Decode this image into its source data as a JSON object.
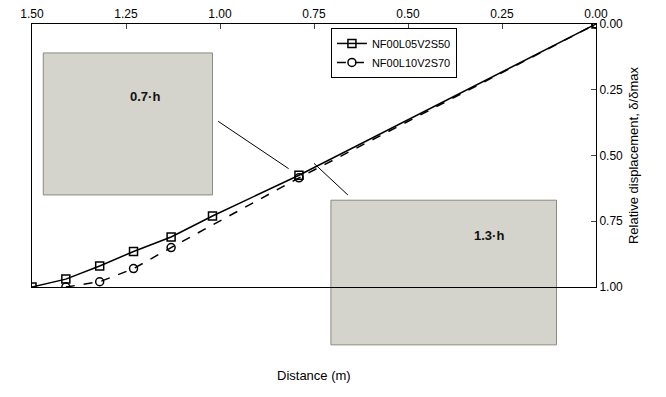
{
  "chart_data": {
    "type": "line",
    "x_label": "Distance (m)",
    "y_label": "Relative displacement, δ/δmax",
    "xlim": [
      1.5,
      0
    ],
    "xticks": [
      {
        "value": 1.5,
        "label": "1.50"
      },
      {
        "value": 1.25,
        "label": "1.25"
      },
      {
        "value": 1,
        "label": "1.00"
      },
      {
        "value": 0.75,
        "label": "0.75"
      },
      {
        "value": 0.5,
        "label": "0.50"
      },
      {
        "value": 0.25,
        "label": "0.25"
      },
      {
        "value": 0,
        "label": "0.00"
      }
    ],
    "ylim": [
      1,
      0
    ],
    "yticks": [
      {
        "value": 0,
        "label": "0.00"
      },
      {
        "value": 0.25,
        "label": "0.25"
      },
      {
        "value": 0.5,
        "label": "0.50"
      },
      {
        "value": 0.75,
        "label": "0.75"
      },
      {
        "value": 1,
        "label": "1.00"
      }
    ],
    "grid": false,
    "legend": "top-center",
    "series": [
      {
        "name": "NF00L05V2S50",
        "color": "#000000",
        "marker": "square-open",
        "line_style": "solid",
        "x": [
          1.5,
          1.41,
          1.32,
          1.23,
          1.13,
          1.02,
          0.79,
          0
        ],
        "values": [
          1.0,
          0.97,
          0.92,
          0.865,
          0.81,
          0.73,
          0.575,
          0
        ]
      },
      {
        "name": "NF00L10V2S70",
        "color": "#000000",
        "marker": "circle-open",
        "line_style": "dash",
        "x": [
          1.41,
          1.32,
          1.23,
          1.13,
          0.79,
          0
        ],
        "values": [
          1.0,
          0.98,
          0.93,
          0.85,
          0.585,
          0
        ]
      }
    ],
    "annotations": [
      "0.7·h",
      "1.3·h"
    ]
  }
}
